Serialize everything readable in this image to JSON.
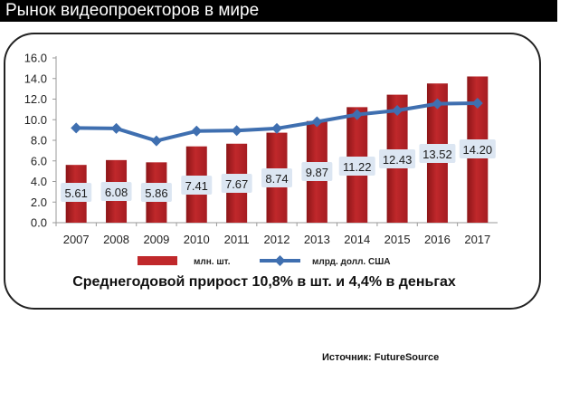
{
  "title": "Рынок видеопроекторов в мире",
  "source": "Источник: FutureSource",
  "subtitle": "Среднегодовой прирост 10,8% в шт. и 4,4% в деньгах",
  "colors": {
    "bar": "#c0282b",
    "line": "#3f6fb0",
    "label_bg": "#dce6f2"
  },
  "chart_data": {
    "type": "bar",
    "categories": [
      "2007",
      "2008",
      "2009",
      "2010",
      "2011",
      "2012",
      "2013",
      "2014",
      "2015",
      "2016",
      "2017"
    ],
    "series": [
      {
        "name": "млн. шт.",
        "type": "bar",
        "values": [
          5.61,
          6.08,
          5.86,
          7.41,
          7.67,
          8.74,
          9.87,
          11.22,
          12.43,
          13.52,
          14.2
        ]
      },
      {
        "name": "млрд. долл. США",
        "type": "line",
        "values": [
          9.2,
          9.15,
          7.95,
          8.9,
          8.95,
          9.15,
          9.8,
          10.5,
          10.9,
          11.55,
          11.6
        ]
      }
    ],
    "data_labels": [
      "5.61",
      "6.08",
      "5.86",
      "7.41",
      "7.67",
      "8.74",
      "9.87",
      "11.22",
      "12.43",
      "13.52",
      "14.20"
    ],
    "y_ticks": [
      "0.0",
      "2.0",
      "4.0",
      "6.0",
      "8.0",
      "10.0",
      "12.0",
      "14.0",
      "16.0"
    ],
    "ylim": [
      0,
      16
    ],
    "grid": false,
    "legend_position": "bottom"
  }
}
